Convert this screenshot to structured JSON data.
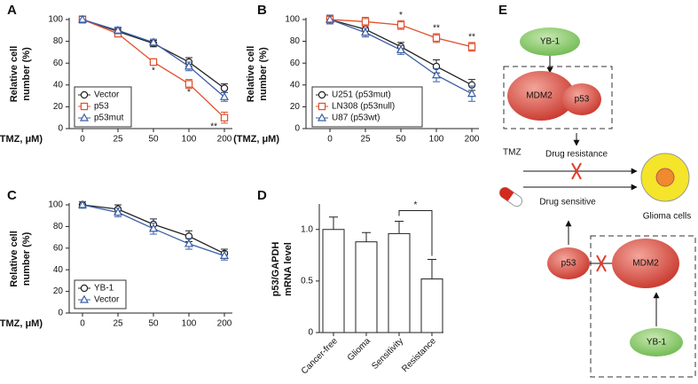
{
  "chart_data": [
    {
      "type": "line",
      "label": "A",
      "ylabel": [
        "Relative cell",
        "number (%)"
      ],
      "xlabel": "(TMZ, μM)",
      "categories": [
        "0",
        "25",
        "50",
        "100",
        "200"
      ],
      "ylim": [
        0,
        100
      ],
      "yticks": [
        0,
        20,
        40,
        60,
        80,
        100
      ],
      "legend": "lower left",
      "series": [
        {
          "name": "Vector",
          "color": "#222222",
          "marker": "circle",
          "values": [
            100,
            89,
            78,
            61,
            37
          ],
          "errors": [
            3,
            3,
            3,
            4,
            4
          ]
        },
        {
          "name": "p53",
          "color": "#e0502e",
          "marker": "square",
          "values": [
            100,
            87,
            61,
            41,
            10
          ],
          "errors": [
            3,
            3,
            3,
            4,
            5
          ]
        },
        {
          "name": "p53mut",
          "color": "#3b5ea6",
          "marker": "triangle",
          "values": [
            100,
            90,
            79,
            57,
            29
          ],
          "errors": [
            3,
            3,
            3,
            4,
            4
          ]
        }
      ],
      "annotations": [
        {
          "text": "*",
          "category": "50"
        },
        {
          "text": "*",
          "category": "100"
        },
        {
          "text": "**",
          "category": "200"
        }
      ]
    },
    {
      "type": "line",
      "label": "B",
      "ylabel": [
        "Relative cell",
        "number (%)"
      ],
      "xlabel": "(TMZ, μM)",
      "categories": [
        "0",
        "25",
        "50",
        "100",
        "200"
      ],
      "ylim": [
        0,
        100
      ],
      "yticks": [
        0,
        20,
        40,
        60,
        80,
        100
      ],
      "legend": "lower left",
      "series": [
        {
          "name": "U251 (p53mut)",
          "color": "#222222",
          "marker": "circle",
          "values": [
            100,
            91,
            75,
            57,
            40
          ],
          "errors": [
            4,
            4,
            4,
            6,
            5
          ]
        },
        {
          "name": "LN308 (p53null)",
          "color": "#e0502e",
          "marker": "square",
          "values": [
            100,
            98,
            95,
            83,
            75
          ],
          "errors": [
            4,
            4,
            4,
            4,
            4
          ]
        },
        {
          "name": "U87 (p53wt)",
          "color": "#3b5ea6",
          "marker": "triangle",
          "values": [
            100,
            88,
            72,
            49,
            32
          ],
          "errors": [
            4,
            4,
            4,
            6,
            7
          ]
        }
      ],
      "annotations": [
        {
          "text": "*",
          "category": "50"
        },
        {
          "text": "**",
          "category": "100"
        },
        {
          "text": "**",
          "category": "200"
        }
      ]
    },
    {
      "type": "line",
      "label": "C",
      "ylabel": [
        "Relative cell",
        "number (%)"
      ],
      "xlabel": "(TMZ, μM)",
      "categories": [
        "0",
        "25",
        "50",
        "100",
        "200"
      ],
      "ylim": [
        0,
        100
      ],
      "yticks": [
        0,
        20,
        40,
        60,
        80,
        100
      ],
      "legend": "lower left",
      "series": [
        {
          "name": "YB-1",
          "color": "#222222",
          "marker": "circle",
          "values": [
            100,
            96,
            82,
            71,
            55
          ],
          "errors": [
            3,
            4,
            5,
            5,
            4
          ]
        },
        {
          "name": "Vector",
          "color": "#3b5ea6",
          "marker": "triangle",
          "values": [
            100,
            93,
            78,
            64,
            53
          ],
          "errors": [
            3,
            4,
            5,
            5,
            4
          ]
        }
      ]
    },
    {
      "type": "bar",
      "label": "D",
      "ylabel": [
        "p53/GAPDH",
        "mRNA level"
      ],
      "categories": [
        "Cancer-free",
        "Glioma",
        "Sensitivity",
        "Resistance"
      ],
      "ylim": [
        0,
        1.23
      ],
      "yticks": [
        0,
        0.5,
        {
          "value": 1,
          "label": "1.0"
        }
      ],
      "color": "#ffffff",
      "values": [
        1.0,
        0.88,
        0.96,
        0.52
      ],
      "errors": [
        0.12,
        0.09,
        0.12,
        0.19
      ],
      "annotations": [
        {
          "text": "*"
        }
      ]
    }
  ],
  "diagram": {
    "label": "E",
    "top_activator": "YB-1",
    "top_complex": [
      "MDM2",
      "p53"
    ],
    "resistance": "Drug resistance",
    "drug": "TMZ",
    "sensitive": "Drug sensitive",
    "target": "Glioma cells",
    "bottom_p53": "p53",
    "bottom_mdm2": "MDM2",
    "bottom_activator": "YB-1"
  }
}
